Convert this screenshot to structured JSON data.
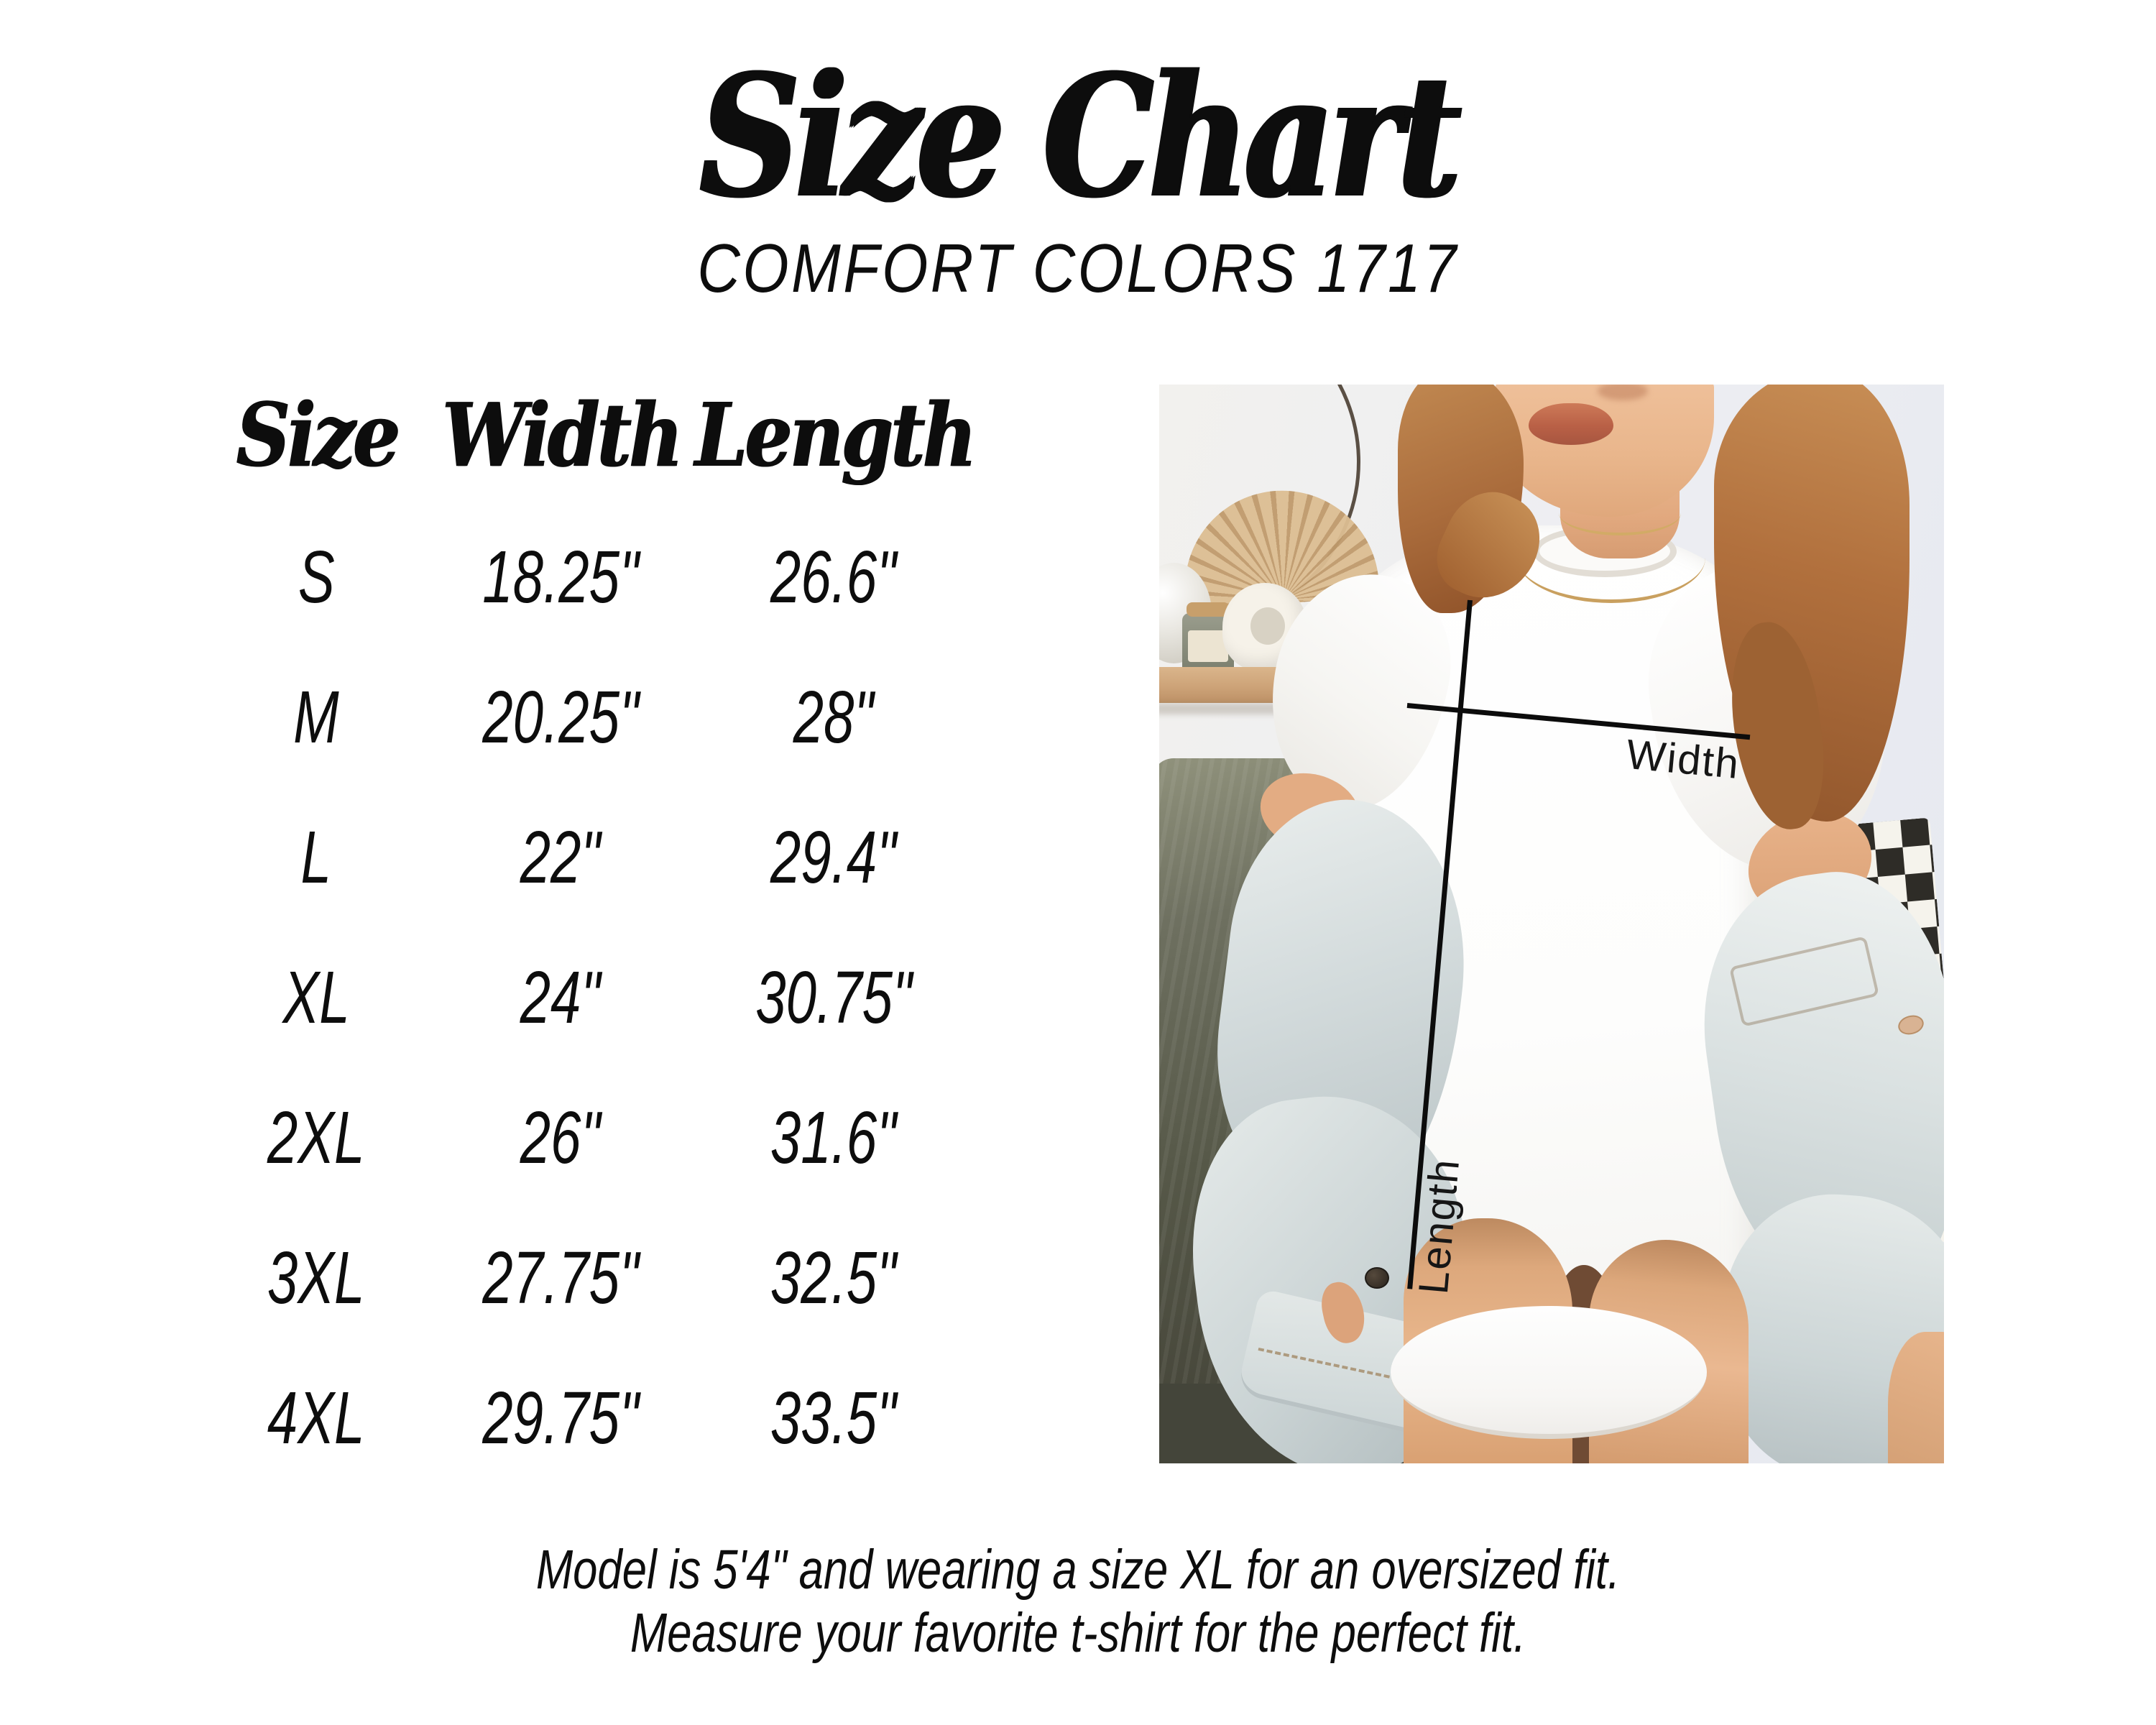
{
  "header": {
    "title": "Size Chart",
    "subtitle": "COMFORT COLORS 1717"
  },
  "size_table": {
    "headers": [
      "Size",
      "Width",
      "Length"
    ],
    "rows": [
      {
        "size": "S",
        "width": "18.25\"",
        "length": "26.6\""
      },
      {
        "size": "M",
        "width": "20.25\"",
        "length": "28\""
      },
      {
        "size": "L",
        "width": "22\"",
        "length": "29.4\""
      },
      {
        "size": "XL",
        "width": "24\"",
        "length": "30.75\""
      },
      {
        "size": "2XL",
        "width": "26\"",
        "length": "31.6\""
      },
      {
        "size": "3XL",
        "width": "27.75\"",
        "length": "32.5\""
      },
      {
        "size": "4XL",
        "width": "29.75\"",
        "length": "33.5\""
      }
    ]
  },
  "photo": {
    "width_label": "Width",
    "length_label": "Length"
  },
  "footer": {
    "line1": "Model is 5'4\" and wearing a size XL for an oversized fit.",
    "line2": "Measure your favorite t-shirt for the perfect fit."
  },
  "chart_data": {
    "type": "table",
    "title": "Size Chart",
    "subtitle": "COMFORT COLORS 1717",
    "columns": [
      "Size",
      "Width",
      "Length"
    ],
    "rows": [
      [
        "S",
        "18.25\"",
        "26.6\""
      ],
      [
        "M",
        "20.25\"",
        "28\""
      ],
      [
        "L",
        "22\"",
        "29.4\""
      ],
      [
        "XL",
        "24\"",
        "30.75\""
      ],
      [
        "2XL",
        "26\"",
        "31.6\""
      ],
      [
        "3XL",
        "27.75\"",
        "32.5\""
      ],
      [
        "4XL",
        "29.75\"",
        "33.5\""
      ]
    ],
    "units": "inches",
    "notes": [
      "Model is 5'4\" and wearing a size XL for an oversized fit.",
      "Measure your favorite t-shirt for the perfect fit."
    ]
  },
  "colors": {
    "background": "#ffffff",
    "text": "#0d0d0d",
    "measure_line": "#0c0c0c",
    "hair": "#b1703d",
    "skin": "#e9b68c",
    "denim": "#d6dedf",
    "sofa": "#565848",
    "shelf_wood": "#cda378",
    "wall": "#eceef2"
  }
}
